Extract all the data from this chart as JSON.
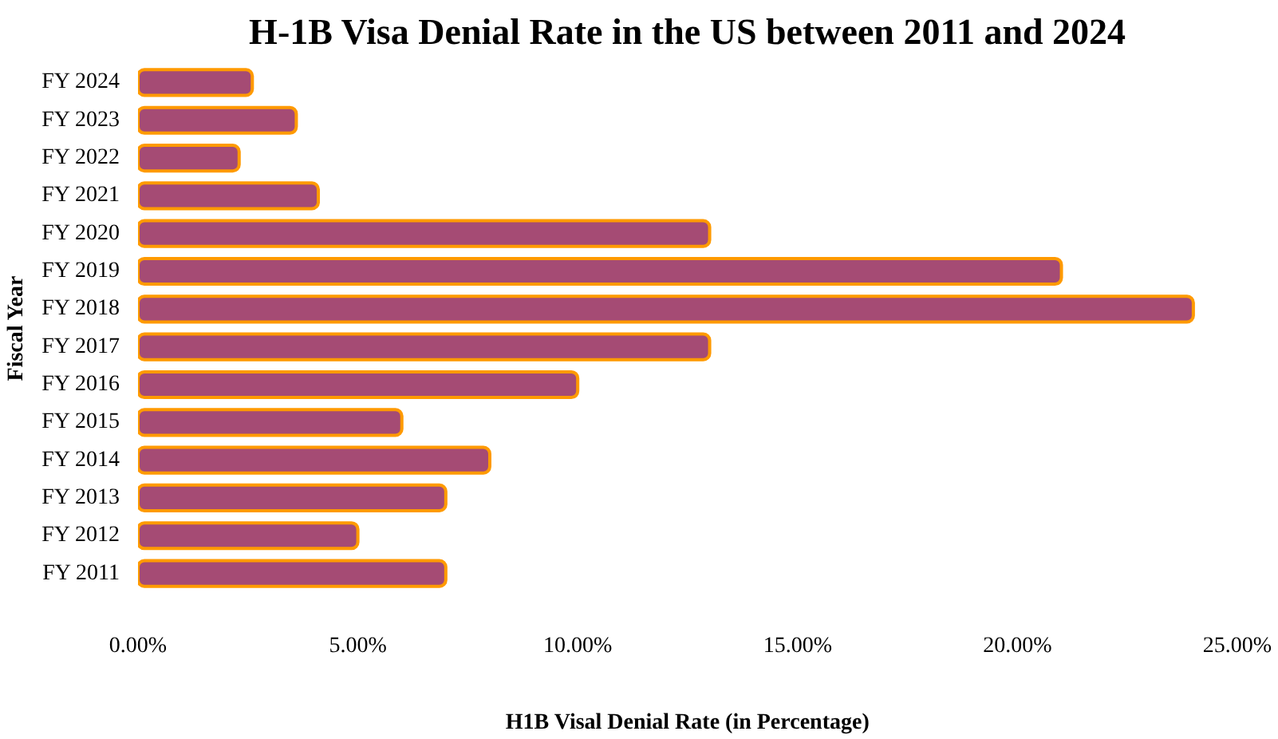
{
  "chart_data": {
    "type": "bar",
    "orientation": "horizontal",
    "title": "H-1B Visa Denial Rate in the US between 2011 and 2024",
    "xlabel": "H1B Visal Denial Rate (in Percentage)",
    "ylabel": "Fiscal Year",
    "categories": [
      "FY 2024",
      "FY 2023",
      "FY 2022",
      "FY 2021",
      "FY 2020",
      "FY 2019",
      "FY 2018",
      "FY 2017",
      "FY 2016",
      "FY 2015",
      "FY 2014",
      "FY 2013",
      "FY 2012",
      "FY 2011"
    ],
    "values": [
      2.6,
      3.6,
      2.3,
      4.1,
      13,
      21,
      24,
      13,
      10,
      6,
      8,
      7,
      5,
      7
    ],
    "color": "#a54b74",
    "xlim": [
      0,
      25
    ],
    "xticks": [
      {
        "value": 0,
        "label": "0.00%"
      },
      {
        "value": 5,
        "label": "5.00%"
      },
      {
        "value": 10,
        "label": "10.00%"
      },
      {
        "value": 15,
        "label": "15.00%"
      },
      {
        "value": 20,
        "label": "20.00%"
      },
      {
        "value": 25,
        "label": "25.00%"
      }
    ],
    "grid": false
  }
}
